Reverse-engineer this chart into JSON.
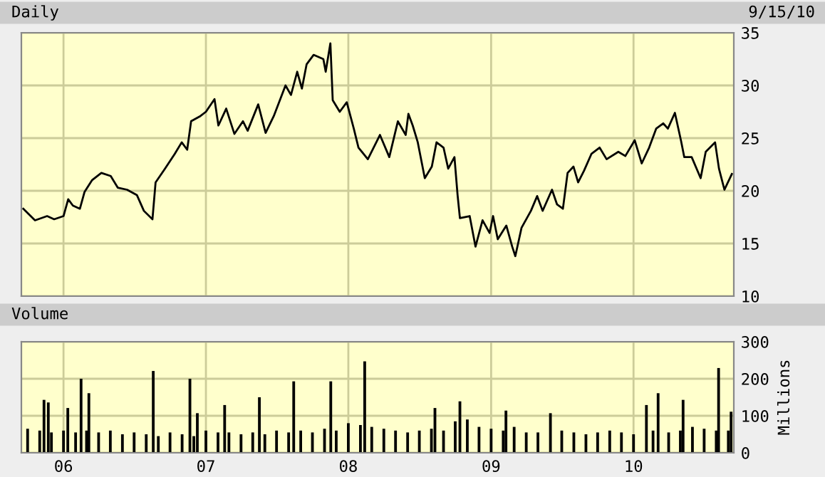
{
  "chart_data": [
    {
      "type": "line",
      "title": "Daily",
      "annotations": [
        "9/15/10"
      ],
      "tick_labels": "y",
      "grid": true,
      "xlim": [
        "2005-09-15",
        "2010-09-15"
      ],
      "xticks": [
        {
          "value": "2006-01-01",
          "label": null
        },
        {
          "value": "2007-01-01",
          "label": null
        },
        {
          "value": "2008-01-01",
          "label": null
        },
        {
          "value": "2009-01-01",
          "label": null
        },
        {
          "value": "2010-01-01",
          "label": null
        }
      ],
      "ylim": [
        10,
        35
      ],
      "yticks": [
        10,
        15,
        20,
        25,
        30,
        35
      ],
      "x": [
        "2005-09-20",
        "2005-10-20",
        "2005-11-20",
        "2005-12-08",
        "2006-01-01",
        "2006-01-13",
        "2006-01-25",
        "2006-02-12",
        "2006-02-24",
        "2006-03-15",
        "2006-04-08",
        "2006-05-02",
        "2006-05-20",
        "2006-06-13",
        "2006-07-08",
        "2006-07-26",
        "2006-08-17",
        "2006-08-25",
        "2006-09-18",
        "2006-10-13",
        "2006-10-31",
        "2006-11-14",
        "2006-11-24",
        "2006-12-18",
        "2007-01-01",
        "2007-01-23",
        "2007-02-02",
        "2007-02-22",
        "2007-03-15",
        "2007-04-06",
        "2007-04-18",
        "2007-05-15",
        "2007-06-03",
        "2007-06-24",
        "2007-07-24",
        "2007-08-07",
        "2007-08-23",
        "2007-09-04",
        "2007-09-16",
        "2007-10-04",
        "2007-10-29",
        "2007-11-04",
        "2007-11-16",
        "2007-11-22",
        "2007-12-10",
        "2007-12-28",
        "2008-01-15",
        "2008-01-27",
        "2008-02-20",
        "2008-03-22",
        "2008-04-15",
        "2008-05-07",
        "2008-05-27",
        "2008-06-03",
        "2008-06-14",
        "2008-06-27",
        "2008-07-15",
        "2008-08-02",
        "2008-08-14",
        "2008-09-01",
        "2008-09-13",
        "2008-09-29",
        "2008-10-07",
        "2008-10-13",
        "2008-11-07",
        "2008-11-22",
        "2008-12-10",
        "2008-12-28",
        "2009-01-06",
        "2009-01-18",
        "2009-02-09",
        "2009-02-24",
        "2009-03-04",
        "2009-03-20",
        "2009-04-13",
        "2009-04-29",
        "2009-05-13",
        "2009-06-06",
        "2009-06-19",
        "2009-07-04",
        "2009-07-16",
        "2009-07-31",
        "2009-08-12",
        "2009-08-27",
        "2009-09-15",
        "2009-10-06",
        "2009-10-24",
        "2009-11-23",
        "2009-12-11",
        "2010-01-04",
        "2010-01-22",
        "2010-02-10",
        "2010-02-28",
        "2010-03-18",
        "2010-03-30",
        "2010-04-17",
        "2010-05-03",
        "2010-05-11",
        "2010-05-30",
        "2010-06-22",
        "2010-07-05",
        "2010-07-29",
        "2010-08-08",
        "2010-08-22",
        "2010-09-10"
      ],
      "series": [
        {
          "color": "#000000",
          "values": [
            18.3,
            17.2,
            17.6,
            17.3,
            17.6,
            19.2,
            18.6,
            18.3,
            19.9,
            21.0,
            21.7,
            21.4,
            20.3,
            20.1,
            19.6,
            18.1,
            17.3,
            20.8,
            22.1,
            23.5,
            24.6,
            23.9,
            26.6,
            27.1,
            27.5,
            28.7,
            26.2,
            27.8,
            25.4,
            26.6,
            25.7,
            28.2,
            25.5,
            27.1,
            30.0,
            29.1,
            31.3,
            29.7,
            32.0,
            32.9,
            32.5,
            31.3,
            34.0,
            28.6,
            27.5,
            28.4,
            25.9,
            24.1,
            23.0,
            25.3,
            23.2,
            26.6,
            25.3,
            27.3,
            26.2,
            24.6,
            21.2,
            22.3,
            24.6,
            24.1,
            22.1,
            23.2,
            19.6,
            17.4,
            17.6,
            14.7,
            17.2,
            16.0,
            17.6,
            15.4,
            16.7,
            14.7,
            13.8,
            16.5,
            18.1,
            19.5,
            18.1,
            20.1,
            18.7,
            18.3,
            21.7,
            22.3,
            20.8,
            21.9,
            23.5,
            24.1,
            23.0,
            23.7,
            23.3,
            24.8,
            22.6,
            24.1,
            25.9,
            26.4,
            25.9,
            27.4,
            24.7,
            23.2,
            23.2,
            21.2,
            23.7,
            24.6,
            22.1,
            20.1,
            21.6
          ]
        }
      ]
    },
    {
      "type": "bar",
      "title": "Volume",
      "y2label": "Millions",
      "grid": true,
      "xlim": [
        "2005-09-15",
        "2010-09-15"
      ],
      "xticks": [
        {
          "value": "2006-01-01",
          "label": "06"
        },
        {
          "value": "2007-01-01",
          "label": "07"
        },
        {
          "value": "2008-01-01",
          "label": "08"
        },
        {
          "value": "2009-01-01",
          "label": "09"
        },
        {
          "value": "2010-01-01",
          "label": "10"
        }
      ],
      "ylim": [
        0,
        300
      ],
      "yticks": [
        0,
        100,
        200,
        300
      ],
      "x": [
        "2005-10-01",
        "2005-11-01",
        "2005-11-12",
        "2005-11-23",
        "2005-12-01",
        "2006-01-01",
        "2006-01-12",
        "2006-02-01",
        "2006-02-15",
        "2006-03-01",
        "2006-03-07",
        "2006-04-01",
        "2006-05-01",
        "2006-06-01",
        "2006-07-01",
        "2006-08-01",
        "2006-08-19",
        "2006-09-01",
        "2006-10-01",
        "2006-11-01",
        "2006-11-21",
        "2006-12-01",
        "2006-12-10",
        "2007-01-01",
        "2007-02-01",
        "2007-02-18",
        "2007-03-01",
        "2007-04-01",
        "2007-05-01",
        "2007-05-18",
        "2007-06-01",
        "2007-07-01",
        "2007-08-01",
        "2007-08-14",
        "2007-09-01",
        "2007-10-01",
        "2007-11-01",
        "2007-11-17",
        "2007-12-01",
        "2008-01-01",
        "2008-02-01",
        "2008-02-12",
        "2008-03-01",
        "2008-04-01",
        "2008-05-01",
        "2008-06-01",
        "2008-07-01",
        "2008-08-01",
        "2008-08-10",
        "2008-09-01",
        "2008-10-01",
        "2008-10-13",
        "2008-11-01",
        "2008-12-01",
        "2009-01-01",
        "2009-02-01",
        "2009-02-08",
        "2009-03-01",
        "2009-04-01",
        "2009-05-01",
        "2009-06-02",
        "2009-07-01",
        "2009-08-01",
        "2009-09-01",
        "2009-10-01",
        "2009-11-01",
        "2009-12-01",
        "2010-01-01",
        "2010-02-03",
        "2010-02-20",
        "2010-03-05",
        "2010-04-01",
        "2010-05-01",
        "2010-05-08",
        "2010-06-01",
        "2010-07-01",
        "2010-08-01",
        "2010-08-07",
        "2010-09-01",
        "2010-09-08"
      ],
      "series": [
        {
          "color": "#000000",
          "values": [
            65,
            60,
            143,
            136,
            55,
            60,
            121,
            55,
            200,
            60,
            161,
            55,
            60,
            50,
            55,
            50,
            221,
            45,
            55,
            50,
            200,
            45,
            107,
            60,
            55,
            129,
            55,
            50,
            55,
            150,
            50,
            60,
            55,
            193,
            60,
            55,
            65,
            193,
            60,
            80,
            75,
            247,
            70,
            65,
            60,
            55,
            60,
            65,
            121,
            60,
            85,
            139,
            90,
            70,
            65,
            60,
            114,
            70,
            55,
            55,
            107,
            60,
            55,
            50,
            55,
            60,
            55,
            50,
            129,
            60,
            161,
            55,
            60,
            143,
            70,
            65,
            60,
            229,
            60,
            111
          ]
        }
      ]
    }
  ]
}
